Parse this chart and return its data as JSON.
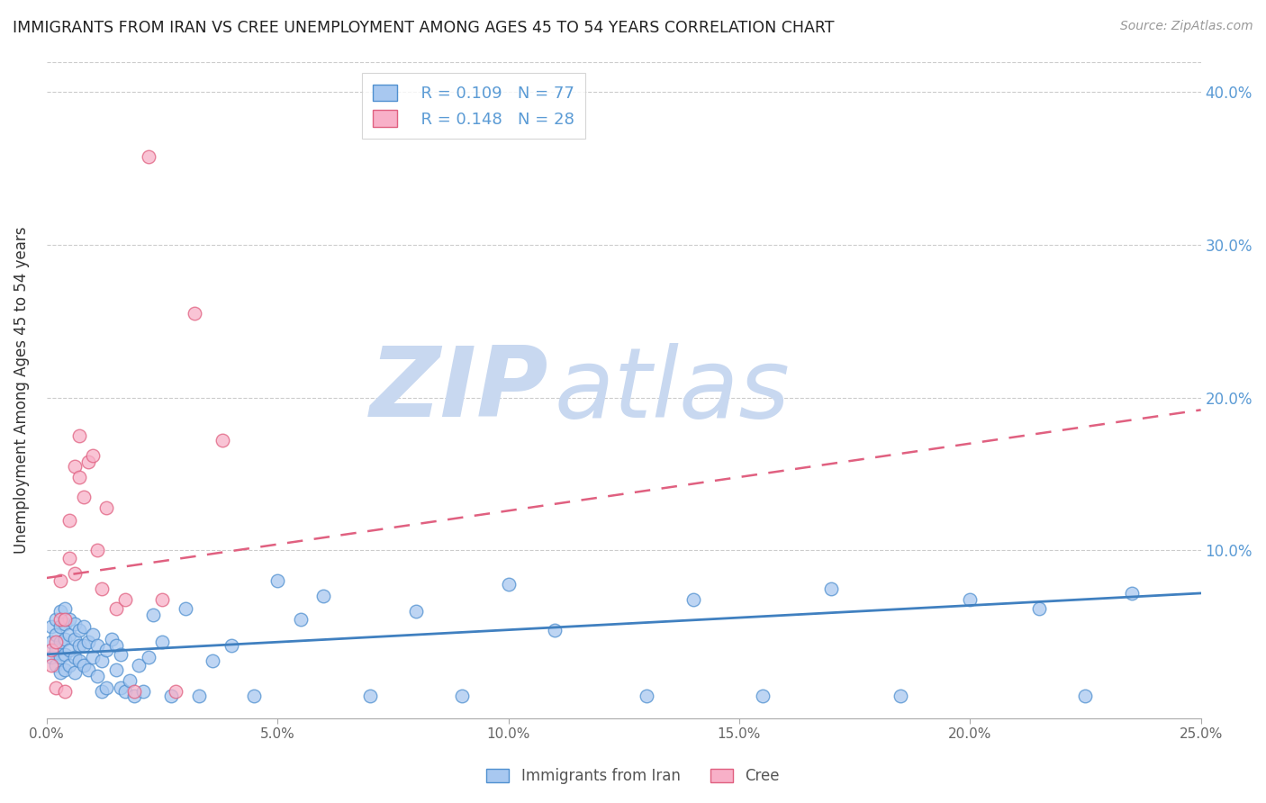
{
  "title": "IMMIGRANTS FROM IRAN VS CREE UNEMPLOYMENT AMONG AGES 45 TO 54 YEARS CORRELATION CHART",
  "source": "Source: ZipAtlas.com",
  "xlabel": "",
  "ylabel": "Unemployment Among Ages 45 to 54 years",
  "xlim": [
    0.0,
    0.25
  ],
  "ylim": [
    -0.01,
    0.42
  ],
  "xticks": [
    0.0,
    0.05,
    0.1,
    0.15,
    0.2,
    0.25
  ],
  "yticks_right": [
    0.1,
    0.2,
    0.3,
    0.4
  ],
  "ytick_labels_right": [
    "10.0%",
    "20.0%",
    "30.0%",
    "40.0%"
  ],
  "xtick_labels": [
    "0.0%",
    "5.0%",
    "10.0%",
    "15.0%",
    "20.0%",
    "25.0%"
  ],
  "blue_R": 0.109,
  "blue_N": 77,
  "pink_R": 0.148,
  "pink_N": 28,
  "blue_color": "#A8C8F0",
  "pink_color": "#F8B0C8",
  "blue_edge_color": "#5090D0",
  "pink_edge_color": "#E06080",
  "blue_line_color": "#4080C0",
  "pink_line_color": "#E06080",
  "watermark_zip_color": "#C8D8F0",
  "watermark_atlas_color": "#C8D8F0",
  "legend_label_blue": "Immigrants from Iran",
  "legend_label_pink": "Cree",
  "blue_trend_x": [
    0.0,
    0.25
  ],
  "blue_trend_y": [
    0.032,
    0.072
  ],
  "pink_trend_x": [
    0.0,
    0.25
  ],
  "pink_trend_y": [
    0.082,
    0.192
  ],
  "blue_scatter_x": [
    0.001,
    0.001,
    0.001,
    0.002,
    0.002,
    0.002,
    0.002,
    0.003,
    0.003,
    0.003,
    0.003,
    0.003,
    0.004,
    0.004,
    0.004,
    0.004,
    0.004,
    0.005,
    0.005,
    0.005,
    0.005,
    0.006,
    0.006,
    0.006,
    0.006,
    0.007,
    0.007,
    0.007,
    0.008,
    0.008,
    0.008,
    0.009,
    0.009,
    0.01,
    0.01,
    0.011,
    0.011,
    0.012,
    0.012,
    0.013,
    0.013,
    0.014,
    0.015,
    0.015,
    0.016,
    0.016,
    0.017,
    0.018,
    0.019,
    0.02,
    0.021,
    0.022,
    0.023,
    0.025,
    0.027,
    0.03,
    0.033,
    0.036,
    0.04,
    0.045,
    0.05,
    0.055,
    0.06,
    0.07,
    0.08,
    0.09,
    0.1,
    0.11,
    0.13,
    0.14,
    0.155,
    0.17,
    0.185,
    0.2,
    0.215,
    0.225,
    0.235
  ],
  "blue_scatter_y": [
    0.03,
    0.04,
    0.05,
    0.025,
    0.035,
    0.045,
    0.055,
    0.02,
    0.03,
    0.04,
    0.05,
    0.06,
    0.022,
    0.032,
    0.042,
    0.052,
    0.062,
    0.025,
    0.035,
    0.045,
    0.055,
    0.02,
    0.03,
    0.042,
    0.052,
    0.028,
    0.038,
    0.048,
    0.025,
    0.038,
    0.05,
    0.022,
    0.04,
    0.03,
    0.045,
    0.018,
    0.038,
    0.008,
    0.028,
    0.01,
    0.035,
    0.042,
    0.022,
    0.038,
    0.01,
    0.032,
    0.008,
    0.015,
    0.005,
    0.025,
    0.008,
    0.03,
    0.058,
    0.04,
    0.005,
    0.062,
    0.005,
    0.028,
    0.038,
    0.005,
    0.08,
    0.055,
    0.07,
    0.005,
    0.06,
    0.005,
    0.078,
    0.048,
    0.005,
    0.068,
    0.005,
    0.075,
    0.005,
    0.068,
    0.062,
    0.005,
    0.072
  ],
  "pink_scatter_x": [
    0.001,
    0.001,
    0.002,
    0.002,
    0.003,
    0.003,
    0.004,
    0.004,
    0.005,
    0.005,
    0.006,
    0.006,
    0.007,
    0.007,
    0.008,
    0.009,
    0.01,
    0.011,
    0.012,
    0.013,
    0.015,
    0.017,
    0.019,
    0.022,
    0.025,
    0.028,
    0.032,
    0.038
  ],
  "pink_scatter_y": [
    0.035,
    0.025,
    0.01,
    0.04,
    0.055,
    0.08,
    0.008,
    0.055,
    0.095,
    0.12,
    0.085,
    0.155,
    0.148,
    0.175,
    0.135,
    0.158,
    0.162,
    0.1,
    0.075,
    0.128,
    0.062,
    0.068,
    0.008,
    0.358,
    0.068,
    0.008,
    0.255,
    0.172
  ]
}
